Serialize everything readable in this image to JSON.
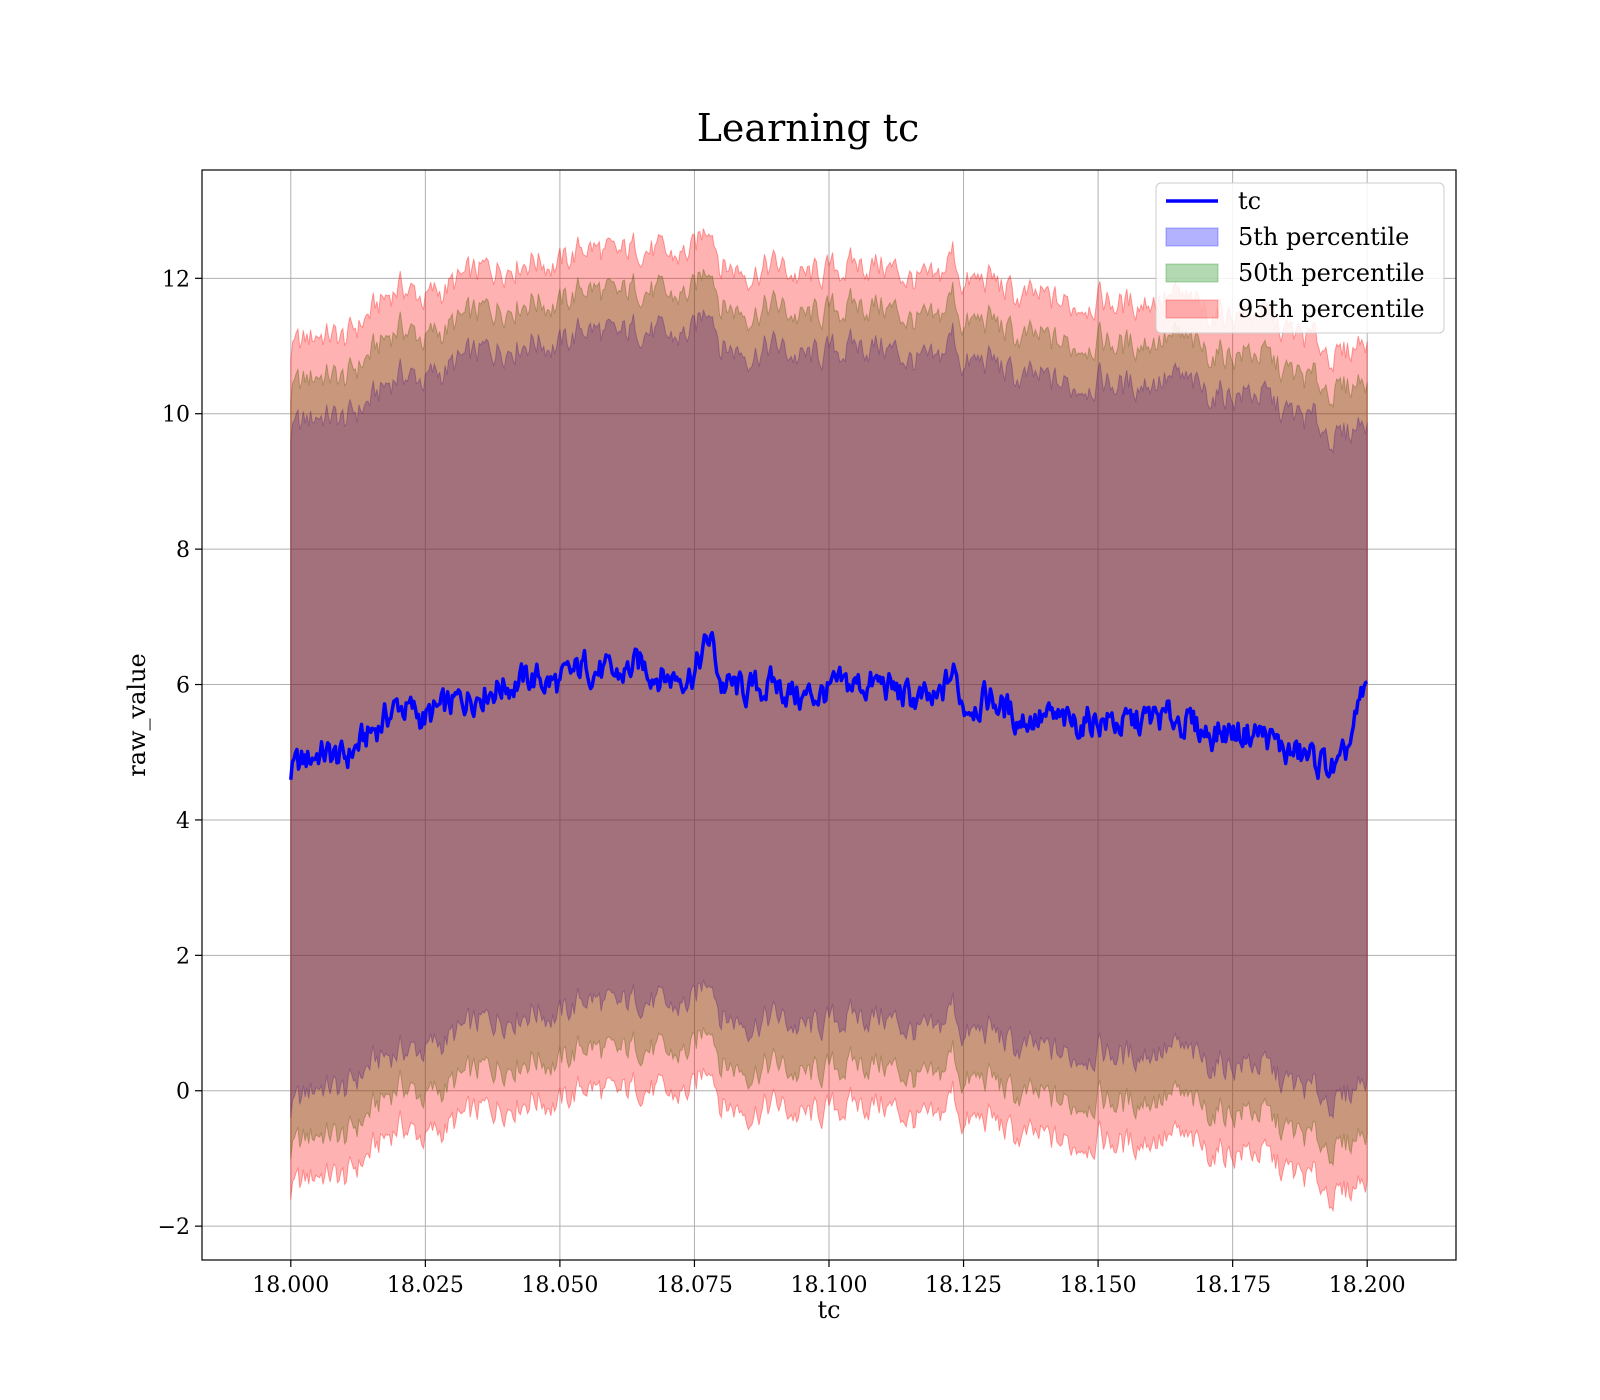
{
  "chart_data": {
    "type": "area",
    "title": "Learning tc",
    "xlabel": "tc",
    "ylabel": "raw_value",
    "xlim": [
      17.9835,
      18.2165
    ],
    "ylim": [
      -2.5,
      13.6
    ],
    "xticks": [
      "18.000",
      "18.025",
      "18.050",
      "18.075",
      "18.100",
      "18.125",
      "18.150",
      "18.175",
      "18.200"
    ],
    "yticks": [
      "−2",
      "0",
      "2",
      "4",
      "6",
      "8",
      "10",
      "12"
    ],
    "grid": true,
    "legend_position": "top-right",
    "colors": {
      "line": "#0000ff",
      "band5": "#0000ff",
      "band50": "#008000",
      "band95": "#ff0000"
    },
    "band_opacity": 0.3,
    "series": [
      {
        "name": "tc",
        "kind": "line",
        "x": [
          18.0,
          18.005,
          18.01,
          18.015,
          18.02,
          18.025,
          18.03,
          18.035,
          18.04,
          18.045,
          18.05,
          18.055,
          18.06,
          18.065,
          18.07,
          18.075,
          18.078,
          18.08,
          18.085,
          18.09,
          18.095,
          18.1,
          18.105,
          18.11,
          18.115,
          18.12,
          18.123,
          18.125,
          18.13,
          18.135,
          18.14,
          18.145,
          18.15,
          18.155,
          18.16,
          18.165,
          18.17,
          18.175,
          18.18,
          18.185,
          18.19,
          18.195,
          18.2
        ],
        "y": [
          4.7,
          5.0,
          4.9,
          5.3,
          5.7,
          5.5,
          5.7,
          5.9,
          6.0,
          6.1,
          6.0,
          6.3,
          6.1,
          6.3,
          6.1,
          6.2,
          6.7,
          6.0,
          5.9,
          6.0,
          5.8,
          5.9,
          6.0,
          6.0,
          5.8,
          5.7,
          6.2,
          5.7,
          5.8,
          5.5,
          5.5,
          5.4,
          5.5,
          5.4,
          5.5,
          5.5,
          5.3,
          5.3,
          5.3,
          5.0,
          4.9,
          4.7,
          6.0
        ]
      },
      {
        "name": "5th percentile",
        "kind": "band",
        "x": [
          18.0,
          18.005,
          18.01,
          18.015,
          18.02,
          18.025,
          18.03,
          18.035,
          18.04,
          18.045,
          18.05,
          18.055,
          18.06,
          18.065,
          18.07,
          18.075,
          18.078,
          18.08,
          18.085,
          18.09,
          18.095,
          18.1,
          18.105,
          18.11,
          18.115,
          18.12,
          18.123,
          18.125,
          18.13,
          18.135,
          18.14,
          18.145,
          18.15,
          18.155,
          18.16,
          18.165,
          18.17,
          18.175,
          18.18,
          18.185,
          18.19,
          18.195,
          18.2
        ],
        "lower": [
          -0.3,
          0.1,
          0.0,
          0.4,
          0.6,
          0.6,
          0.8,
          1.0,
          1.1,
          1.2,
          1.1,
          1.4,
          1.2,
          1.4,
          1.2,
          1.3,
          1.8,
          1.1,
          1.0,
          1.1,
          0.9,
          1.0,
          1.1,
          1.1,
          0.9,
          0.8,
          1.3,
          0.8,
          0.9,
          0.6,
          0.6,
          0.5,
          0.6,
          0.5,
          0.6,
          0.6,
          0.4,
          0.4,
          0.4,
          0.1,
          0.0,
          -0.2,
          0.3
        ],
        "upper": [
          9.7,
          10.0,
          9.9,
          10.2,
          10.6,
          10.5,
          10.7,
          10.9,
          11.0,
          11.1,
          11.0,
          11.3,
          11.1,
          11.3,
          11.1,
          11.2,
          11.7,
          11.0,
          10.9,
          11.0,
          10.8,
          10.9,
          11.0,
          11.0,
          10.8,
          10.7,
          11.2,
          10.7,
          10.8,
          10.5,
          10.5,
          10.4,
          10.5,
          10.4,
          10.5,
          10.5,
          10.3,
          10.3,
          10.3,
          10.0,
          9.9,
          9.6,
          10.0
        ]
      },
      {
        "name": "50th percentile",
        "kind": "band",
        "x": [
          18.0,
          18.005,
          18.01,
          18.015,
          18.02,
          18.025,
          18.03,
          18.035,
          18.04,
          18.045,
          18.05,
          18.055,
          18.06,
          18.065,
          18.07,
          18.075,
          18.078,
          18.08,
          18.085,
          18.09,
          18.095,
          18.1,
          18.105,
          18.11,
          18.115,
          18.12,
          18.123,
          18.125,
          18.13,
          18.135,
          18.14,
          18.145,
          18.15,
          18.155,
          18.16,
          18.165,
          18.17,
          18.175,
          18.18,
          18.185,
          18.19,
          18.195,
          18.2
        ],
        "lower": [
          -0.9,
          -0.6,
          -0.7,
          -0.3,
          0.1,
          -0.1,
          0.1,
          0.3,
          0.4,
          0.5,
          0.4,
          0.7,
          0.5,
          0.7,
          0.5,
          0.6,
          1.1,
          0.4,
          0.3,
          0.4,
          0.2,
          0.3,
          0.4,
          0.4,
          0.2,
          0.1,
          0.6,
          0.1,
          0.2,
          -0.1,
          -0.1,
          -0.2,
          -0.1,
          -0.2,
          -0.1,
          -0.1,
          -0.3,
          -0.3,
          -0.3,
          -0.6,
          -0.7,
          -0.9,
          -0.5
        ],
        "upper": [
          10.3,
          10.6,
          10.5,
          10.9,
          11.3,
          11.1,
          11.3,
          11.5,
          11.6,
          11.7,
          11.6,
          11.9,
          11.7,
          11.9,
          11.7,
          11.8,
          12.3,
          11.6,
          11.5,
          11.6,
          11.4,
          11.5,
          11.6,
          11.6,
          11.4,
          11.3,
          11.8,
          11.3,
          11.4,
          11.1,
          11.1,
          11.0,
          11.1,
          11.0,
          11.1,
          11.1,
          10.9,
          10.9,
          10.9,
          10.6,
          10.5,
          10.3,
          10.6
        ]
      },
      {
        "name": "95th percentile",
        "kind": "band",
        "x": [
          18.0,
          18.005,
          18.01,
          18.015,
          18.02,
          18.025,
          18.03,
          18.035,
          18.04,
          18.045,
          18.05,
          18.055,
          18.06,
          18.065,
          18.07,
          18.075,
          18.078,
          18.08,
          18.085,
          18.09,
          18.095,
          18.1,
          18.105,
          18.11,
          18.115,
          18.12,
          18.123,
          18.125,
          18.13,
          18.135,
          18.14,
          18.145,
          18.15,
          18.155,
          18.16,
          18.165,
          18.17,
          18.175,
          18.18,
          18.185,
          18.19,
          18.195,
          18.2
        ],
        "lower": [
          -1.5,
          -1.2,
          -1.3,
          -0.9,
          -0.5,
          -0.7,
          -0.5,
          -0.3,
          -0.2,
          -0.1,
          -0.2,
          0.1,
          -0.1,
          0.1,
          -0.1,
          0.0,
          0.5,
          -0.2,
          -0.3,
          -0.2,
          -0.4,
          -0.3,
          -0.2,
          -0.2,
          -0.4,
          -0.5,
          0.0,
          -0.5,
          -0.4,
          -0.7,
          -0.7,
          -0.8,
          -0.7,
          -0.8,
          -0.7,
          -0.7,
          -0.9,
          -0.9,
          -0.9,
          -1.2,
          -1.3,
          -1.6,
          -1.2
        ],
        "upper": [
          10.9,
          11.2,
          11.1,
          11.5,
          11.9,
          11.7,
          11.9,
          12.1,
          12.2,
          12.3,
          12.2,
          12.5,
          12.3,
          12.5,
          12.3,
          12.4,
          12.9,
          12.2,
          12.1,
          12.2,
          12.0,
          12.1,
          12.2,
          12.2,
          12.0,
          11.9,
          12.4,
          11.9,
          12.0,
          11.7,
          11.7,
          11.6,
          11.7,
          11.6,
          11.7,
          11.7,
          11.5,
          11.5,
          11.5,
          11.2,
          11.1,
          10.8,
          11.2
        ]
      }
    ]
  }
}
